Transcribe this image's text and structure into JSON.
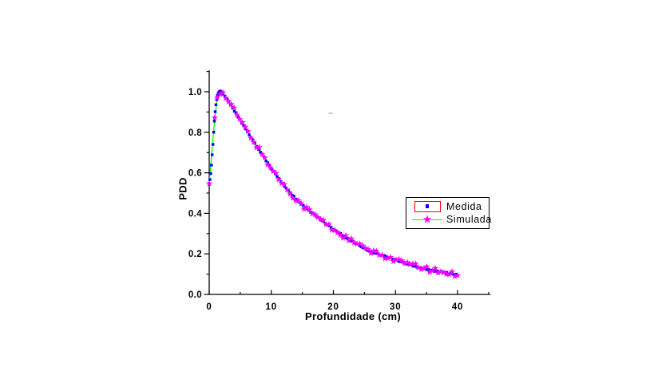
{
  "figure": {
    "background": "#ffffff"
  },
  "chart_data": {
    "type": "line+scatter",
    "title": "",
    "xlabel": "Profundidade (cm)",
    "ylabel": "PDD",
    "xlim": [
      0,
      45.3
    ],
    "ylim": [
      0,
      1.106
    ],
    "grid": false,
    "axes_style": "open-frame, x ticks inward, y ticks outward",
    "x_ticks": {
      "major": [
        0,
        10,
        20,
        30,
        40
      ],
      "major_labels": [
        "0",
        "10",
        "20",
        "30",
        "40"
      ],
      "minor": [
        5,
        15,
        25,
        35,
        45
      ]
    },
    "y_ticks": {
      "major": [
        0.0,
        0.2,
        0.4,
        0.6,
        0.8,
        1.0
      ],
      "major_labels": [
        "0.0",
        "0.2",
        "0.4",
        "0.6",
        "0.8",
        "1.0"
      ],
      "minor": [
        0.1,
        0.3,
        0.5,
        0.7,
        0.9,
        1.1
      ]
    },
    "legend": {
      "position": "right-middle",
      "border_color": "#000000",
      "selected_entry": "Medida",
      "selection_box_color": "#ff0000"
    },
    "curve_points": [
      [
        0,
        0.55
      ],
      [
        0.2,
        0.58
      ],
      [
        0.4,
        0.65
      ],
      [
        0.6,
        0.74
      ],
      [
        0.8,
        0.84
      ],
      [
        1.0,
        0.92
      ],
      [
        1.2,
        0.965
      ],
      [
        1.4,
        0.99
      ],
      [
        1.6,
        1.0
      ],
      [
        1.9,
        1.0
      ],
      [
        2.2,
        0.99
      ],
      [
        2.6,
        0.975
      ],
      [
        3,
        0.958
      ],
      [
        3.5,
        0.934
      ],
      [
        4,
        0.91
      ],
      [
        4.5,
        0.885
      ],
      [
        5,
        0.86
      ],
      [
        5.5,
        0.835
      ],
      [
        6,
        0.81
      ],
      [
        6.5,
        0.786
      ],
      [
        7,
        0.763
      ],
      [
        7.5,
        0.74
      ],
      [
        8,
        0.717
      ],
      [
        8.5,
        0.693
      ],
      [
        9,
        0.67
      ],
      [
        9.5,
        0.645
      ],
      [
        10,
        0.62
      ],
      [
        10.5,
        0.6
      ],
      [
        11,
        0.58
      ],
      [
        11.5,
        0.56
      ],
      [
        12,
        0.54
      ],
      [
        12.5,
        0.522
      ],
      [
        13,
        0.505
      ],
      [
        13.5,
        0.487
      ],
      [
        14,
        0.47
      ],
      [
        14.5,
        0.455
      ],
      [
        15,
        0.44
      ],
      [
        15.5,
        0.427
      ],
      [
        16,
        0.415
      ],
      [
        16.5,
        0.402
      ],
      [
        17,
        0.39
      ],
      [
        17.5,
        0.38
      ],
      [
        18,
        0.37
      ],
      [
        18.5,
        0.357
      ],
      [
        19,
        0.345
      ],
      [
        19.5,
        0.332
      ],
      [
        20,
        0.32
      ],
      [
        21,
        0.3
      ],
      [
        22,
        0.28
      ],
      [
        23,
        0.263
      ],
      [
        24,
        0.245
      ],
      [
        25,
        0.228
      ],
      [
        26,
        0.212
      ],
      [
        27,
        0.2
      ],
      [
        28,
        0.192
      ],
      [
        29,
        0.181
      ],
      [
        30,
        0.17
      ],
      [
        31,
        0.16
      ],
      [
        32,
        0.15
      ],
      [
        33,
        0.141
      ],
      [
        34,
        0.133
      ],
      [
        35,
        0.126
      ],
      [
        36,
        0.119
      ],
      [
        37,
        0.112
      ],
      [
        38,
        0.107
      ],
      [
        39,
        0.103
      ],
      [
        40,
        0.1
      ]
    ],
    "series": [
      {
        "name": "Medida",
        "marker": "square",
        "color": "#0000ff",
        "line": "none",
        "sample_step_cm": 0.3,
        "sample_step_fine_cm": 0.12,
        "noise": 0.004
      },
      {
        "name": "Simulada",
        "marker": "star",
        "marker_color": "#ff00ff",
        "line_color": "#00ff00",
        "sample_step_cm": 0.45,
        "rise_sample_depths": [
          0,
          0.9
        ],
        "noise": 0.013
      }
    ]
  }
}
